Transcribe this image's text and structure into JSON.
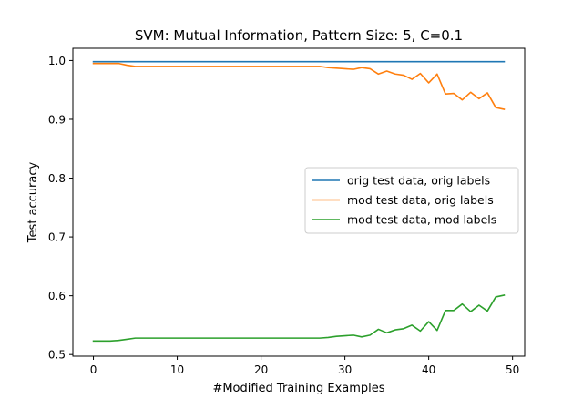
{
  "chart_data": {
    "type": "line",
    "title": "SVM: Mutual Information, Pattern Size: 5, C=0.1",
    "xlabel": "#Modified Training Examples",
    "ylabel": "Test accuracy",
    "xlim": [
      -2.45,
      51.45
    ],
    "ylim": [
      0.4972,
      1.0208
    ],
    "xticks": [
      0,
      10,
      20,
      30,
      40,
      50
    ],
    "xtick_labels": [
      "0",
      "10",
      "20",
      "30",
      "40",
      "50"
    ],
    "yticks": [
      0.5,
      0.6,
      0.7,
      0.8,
      0.9,
      1.0
    ],
    "ytick_labels": [
      "0.5",
      "0.6",
      "0.7",
      "0.8",
      "0.9",
      "1.0"
    ],
    "grid": false,
    "legend_position": "center-right",
    "x": [
      0,
      1,
      2,
      3,
      4,
      5,
      6,
      7,
      8,
      9,
      10,
      11,
      12,
      13,
      14,
      15,
      16,
      17,
      18,
      19,
      20,
      21,
      22,
      23,
      24,
      25,
      26,
      27,
      28,
      29,
      30,
      31,
      32,
      33,
      34,
      35,
      36,
      37,
      38,
      39,
      40,
      41,
      42,
      43,
      44,
      45,
      46,
      47,
      48,
      49
    ],
    "series": [
      {
        "name": "orig test data, orig labels",
        "color": "#1f77b4",
        "values": [
          0.998,
          0.998,
          0.998,
          0.998,
          0.998,
          0.998,
          0.998,
          0.998,
          0.998,
          0.998,
          0.998,
          0.998,
          0.998,
          0.998,
          0.998,
          0.998,
          0.998,
          0.998,
          0.998,
          0.998,
          0.998,
          0.998,
          0.998,
          0.998,
          0.998,
          0.998,
          0.998,
          0.998,
          0.998,
          0.998,
          0.998,
          0.998,
          0.998,
          0.998,
          0.998,
          0.998,
          0.998,
          0.998,
          0.998,
          0.998,
          0.998,
          0.998,
          0.998,
          0.998,
          0.998,
          0.998,
          0.998,
          0.998,
          0.998,
          0.998
        ]
      },
      {
        "name": "mod test data, orig labels",
        "color": "#ff7f0e",
        "values": [
          0.995,
          0.995,
          0.995,
          0.995,
          0.992,
          0.99,
          0.99,
          0.99,
          0.99,
          0.99,
          0.99,
          0.99,
          0.99,
          0.99,
          0.99,
          0.99,
          0.99,
          0.99,
          0.99,
          0.99,
          0.99,
          0.99,
          0.99,
          0.99,
          0.99,
          0.99,
          0.99,
          0.99,
          0.988,
          0.987,
          0.986,
          0.985,
          0.988,
          0.986,
          0.977,
          0.982,
          0.977,
          0.975,
          0.968,
          0.978,
          0.962,
          0.977,
          0.943,
          0.944,
          0.933,
          0.946,
          0.935,
          0.945,
          0.92,
          0.917
        ]
      },
      {
        "name": "mod test data, mod labels",
        "color": "#2ca02c",
        "values": [
          0.523,
          0.523,
          0.523,
          0.524,
          0.526,
          0.528,
          0.528,
          0.528,
          0.528,
          0.528,
          0.528,
          0.528,
          0.528,
          0.528,
          0.528,
          0.528,
          0.528,
          0.528,
          0.528,
          0.528,
          0.528,
          0.528,
          0.528,
          0.528,
          0.528,
          0.528,
          0.528,
          0.528,
          0.529,
          0.531,
          0.532,
          0.533,
          0.53,
          0.533,
          0.543,
          0.537,
          0.542,
          0.544,
          0.55,
          0.54,
          0.556,
          0.541,
          0.575,
          0.575,
          0.586,
          0.573,
          0.584,
          0.574,
          0.598,
          0.601
        ]
      }
    ]
  }
}
